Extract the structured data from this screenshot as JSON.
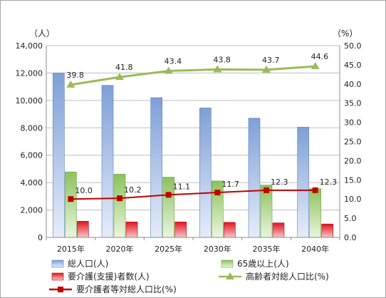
{
  "chart_data": {
    "type": "bar",
    "categories": [
      "2015年",
      "2020年",
      "2025年",
      "2030年",
      "2035年",
      "2040年"
    ],
    "y_left": {
      "unit_label": "（人）",
      "min": 0,
      "max": 14000,
      "step": 2000,
      "ticks": [
        "0",
        "2,000",
        "4,000",
        "6,000",
        "8,000",
        "10,000",
        "12,000",
        "14,000"
      ]
    },
    "y_right": {
      "unit_label": "（%）",
      "min": 0,
      "max": 50,
      "step": 5,
      "ticks": [
        "0.0",
        "5.0",
        "10.0",
        "15.0",
        "20.0",
        "25.0",
        "30.0",
        "35.0",
        "40.0",
        "45.0",
        "50.0"
      ]
    },
    "grid": true,
    "legend_position": "bottom",
    "series": [
      {
        "name": "総人口(人)",
        "kind": "bar",
        "axis": "left",
        "color": "#8eaadb",
        "values": [
          12000,
          11100,
          10200,
          9450,
          8700,
          8050
        ]
      },
      {
        "name": "65歳以上(人)",
        "kind": "bar",
        "axis": "left",
        "color": "#9bcb6b",
        "values": [
          4780,
          4620,
          4400,
          4120,
          3820,
          3560
        ]
      },
      {
        "name": "要介護(支援)者数(人)",
        "kind": "bar",
        "axis": "left",
        "color": "#e0212a",
        "values": [
          1180,
          1130,
          1130,
          1100,
          1060,
          980
        ]
      },
      {
        "name": "高齢者対総人口比(%)",
        "kind": "line",
        "axis": "right",
        "color": "#9bbb59",
        "marker": "triangle",
        "values": [
          39.8,
          41.8,
          43.4,
          43.8,
          43.7,
          44.6
        ],
        "labels": [
          "39.8",
          "41.8",
          "43.4",
          "43.8",
          "43.7",
          "44.6"
        ]
      },
      {
        "name": "要介護者等対総人口比(%)",
        "kind": "line",
        "axis": "right",
        "color": "#c00000",
        "marker": "square",
        "values": [
          10.0,
          10.2,
          11.1,
          11.7,
          12.3,
          12.3
        ],
        "labels": [
          "10.0",
          "10.2",
          "11.1",
          "11.7",
          "12.3",
          "12.3"
        ]
      }
    ]
  }
}
